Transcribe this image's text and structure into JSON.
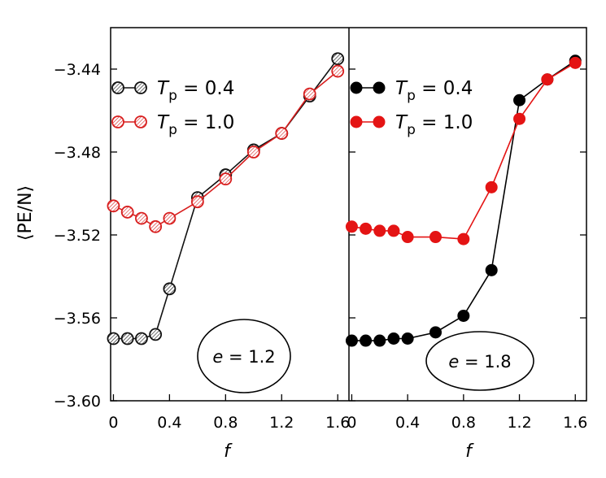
{
  "chart_data": [
    {
      "type": "line",
      "annotation": "e = 1.2",
      "xlabel": "f",
      "ylabel": "⟨PE/N⟩",
      "xlim": [
        -0.02,
        1.68
      ],
      "ylim": [
        -3.6,
        -3.42
      ],
      "xticks": [
        "0",
        "0.4",
        "0.8",
        "1.2",
        "1.6"
      ],
      "yticks": [
        "−3.44",
        "−3.48",
        "−3.52",
        "−3.56",
        "−3.60"
      ],
      "marker": "hatched-open-circle",
      "legend_position": "top-left",
      "series": [
        {
          "name_main": "T",
          "name_sub": "p",
          "name_value": " = 0.4",
          "color": "#111111",
          "x": [
            0,
            0.1,
            0.2,
            0.3,
            0.4,
            0.6,
            0.8,
            1.0,
            1.2,
            1.4,
            1.6
          ],
          "y": [
            -3.57,
            -3.57,
            -3.57,
            -3.568,
            -3.546,
            -3.502,
            -3.491,
            -3.479,
            -3.471,
            -3.453,
            -3.435
          ]
        },
        {
          "name_main": "T",
          "name_sub": "p",
          "name_value": " = 1.0",
          "color": "#d81e1e",
          "x": [
            0,
            0.1,
            0.2,
            0.3,
            0.4,
            0.6,
            0.8,
            1.0,
            1.2,
            1.4,
            1.6
          ],
          "y": [
            -3.506,
            -3.509,
            -3.512,
            -3.516,
            -3.512,
            -3.504,
            -3.493,
            -3.48,
            -3.471,
            -3.452,
            -3.441
          ]
        }
      ]
    },
    {
      "type": "line",
      "annotation": "e = 1.8",
      "xlabel": "f",
      "xlim": [
        -0.02,
        1.68
      ],
      "ylim": [
        -3.6,
        -3.42
      ],
      "xticks": [
        "0",
        "0.4",
        "0.8",
        "1.2",
        "1.6"
      ],
      "marker": "filled-circle",
      "legend_position": "top-left",
      "series": [
        {
          "name_main": "T",
          "name_sub": "p",
          "name_value": " = 0.4",
          "color": "#000000",
          "x": [
            0,
            0.1,
            0.2,
            0.3,
            0.4,
            0.6,
            0.8,
            1.0,
            1.2,
            1.4,
            1.6
          ],
          "y": [
            -3.571,
            -3.571,
            -3.571,
            -3.57,
            -3.57,
            -3.567,
            -3.559,
            -3.537,
            -3.455,
            -3.445,
            -3.436
          ]
        },
        {
          "name_main": "T",
          "name_sub": "p",
          "name_value": " = 1.0",
          "color": "#e41414",
          "x": [
            0,
            0.1,
            0.2,
            0.3,
            0.4,
            0.6,
            0.8,
            1.0,
            1.2,
            1.4,
            1.6
          ],
          "y": [
            -3.516,
            -3.517,
            -3.518,
            -3.518,
            -3.521,
            -3.521,
            -3.522,
            -3.497,
            -3.464,
            -3.445,
            -3.437
          ]
        }
      ]
    }
  ]
}
